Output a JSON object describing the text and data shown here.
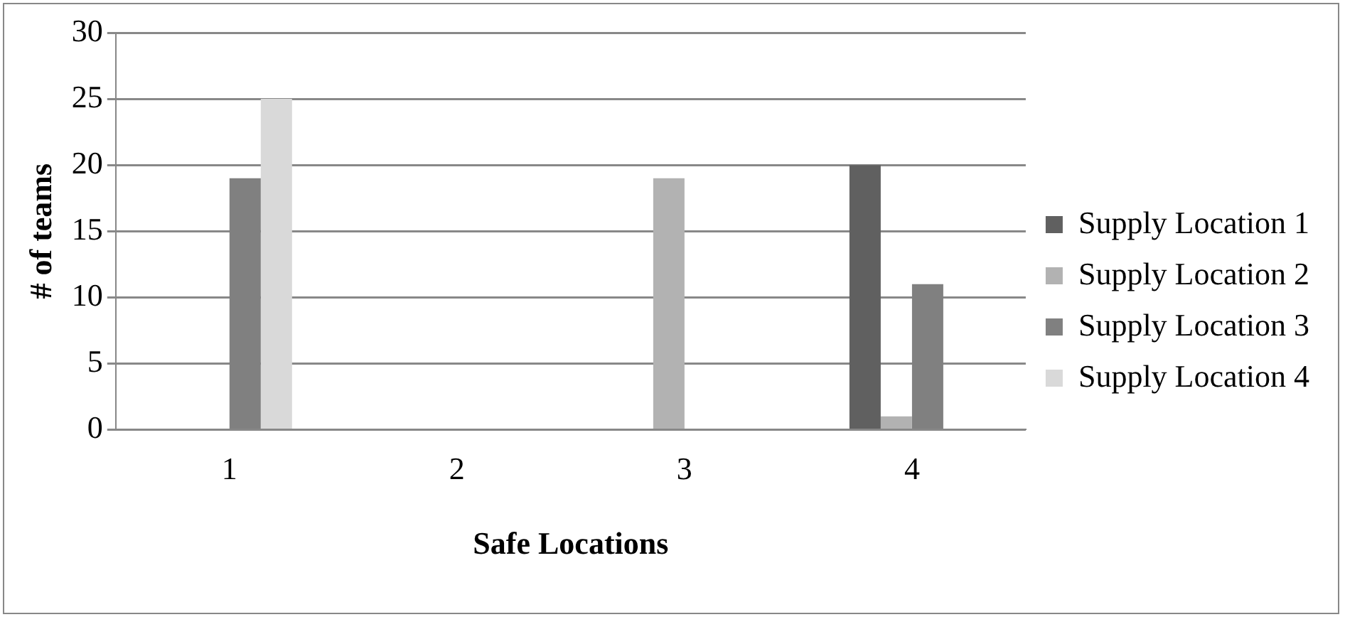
{
  "chart_data": {
    "type": "bar",
    "xlabel": "Safe Locations",
    "ylabel": "# of teams",
    "categories": [
      "1",
      "2",
      "3",
      "4"
    ],
    "series": [
      {
        "name": "Supply Location 1",
        "color": "#606060",
        "values": [
          0,
          0,
          0,
          20
        ]
      },
      {
        "name": "Supply Location 2",
        "color": "#b2b2b2",
        "values": [
          0,
          0,
          19,
          1
        ]
      },
      {
        "name": "Supply Location 3",
        "color": "#808080",
        "values": [
          19,
          0,
          0,
          11
        ]
      },
      {
        "name": "Supply Location 4",
        "color": "#d9d9d9",
        "values": [
          25,
          0,
          0,
          0
        ]
      }
    ],
    "ylim": [
      0,
      30
    ],
    "yticks": [
      0,
      5,
      10,
      15,
      20,
      25,
      30
    ],
    "grid": "y",
    "legend": "right"
  }
}
